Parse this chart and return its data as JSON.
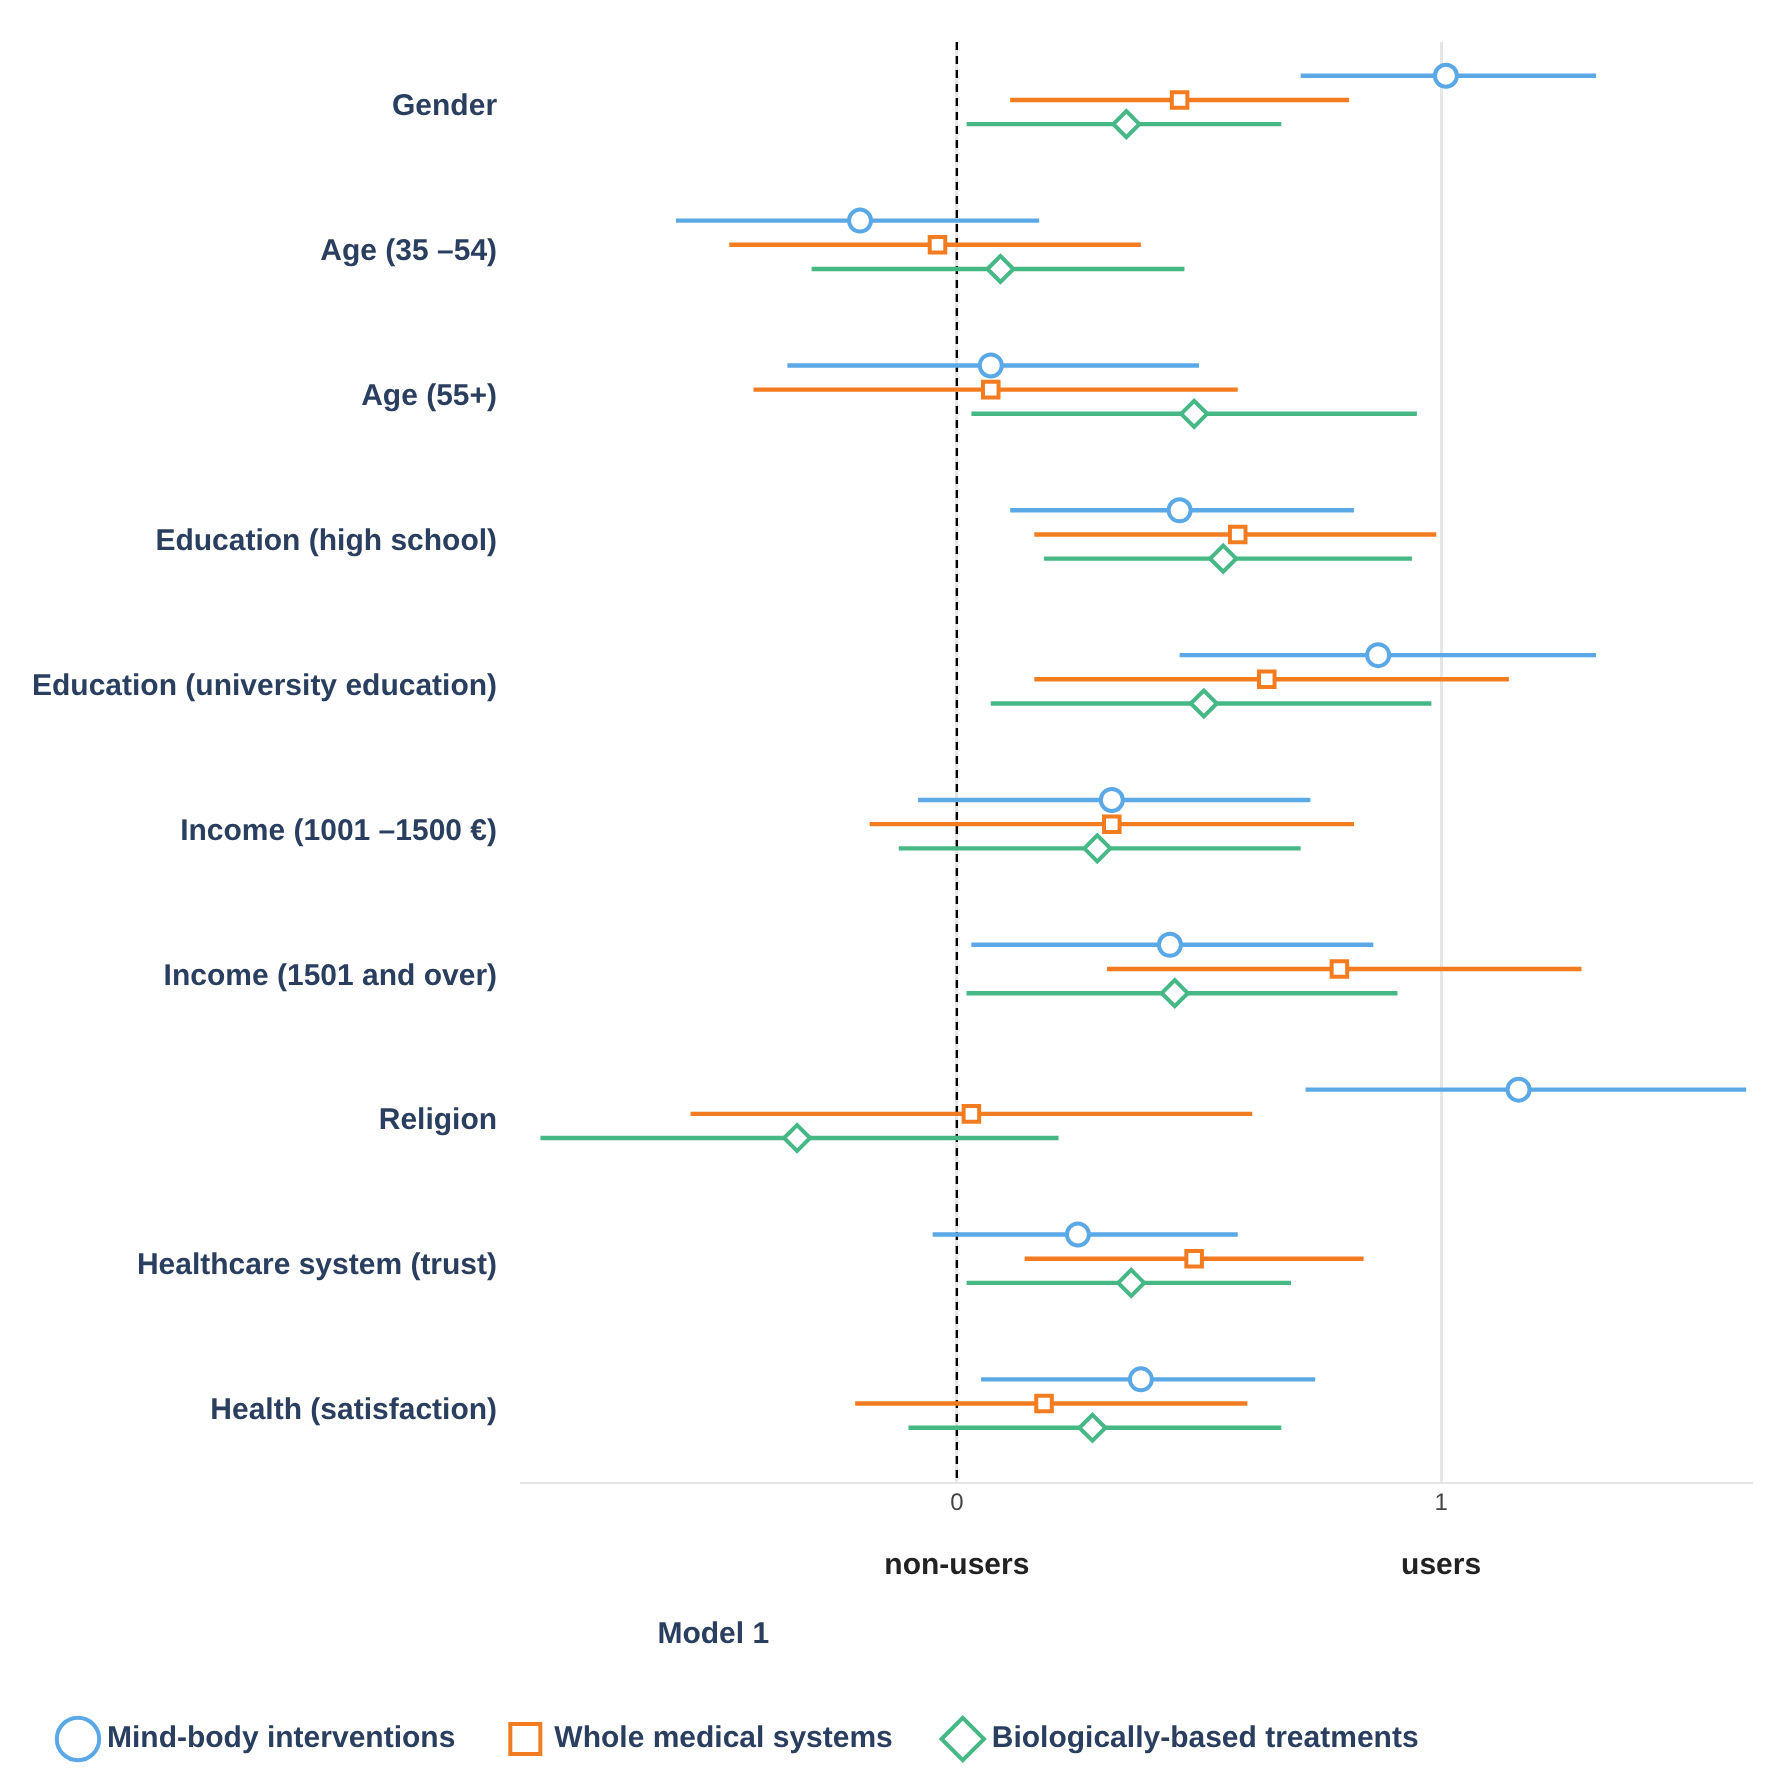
{
  "chart_data": {
    "type": "scatter",
    "orientation": "horizontal",
    "categories": [
      "Gender",
      "Age (35 –54)",
      "Age (55+)",
      "Education (high school)",
      "Education (university education)",
      "Income (1001 –1500 €)",
      "Income (1501 and over)",
      "Religion",
      "Healthcare system (trust)",
      "Health (satisfaction)"
    ],
    "series": [
      {
        "name": "Mind-body interventions",
        "color": "#5aa9e6",
        "marker": "circle",
        "values": [
          1.01,
          -0.2,
          0.07,
          0.46,
          0.87,
          0.32,
          0.44,
          1.16,
          0.25,
          0.38
        ],
        "errors": [
          [
            0.71,
            1.32
          ],
          [
            -0.58,
            0.17
          ],
          [
            -0.35,
            0.5
          ],
          [
            0.11,
            0.82
          ],
          [
            0.46,
            1.32
          ],
          [
            -0.08,
            0.73
          ],
          [
            0.03,
            0.86
          ],
          [
            0.72,
            1.63
          ],
          [
            -0.05,
            0.58
          ],
          [
            0.05,
            0.74
          ]
        ]
      },
      {
        "name": "Whole medical systems",
        "color": "#f47c20",
        "marker": "square",
        "values": [
          0.46,
          -0.04,
          0.07,
          0.58,
          0.64,
          0.32,
          0.79,
          0.03,
          0.49,
          0.18
        ],
        "errors": [
          [
            0.11,
            0.81
          ],
          [
            -0.47,
            0.38
          ],
          [
            -0.42,
            0.58
          ],
          [
            0.16,
            0.99
          ],
          [
            0.16,
            1.14
          ],
          [
            -0.18,
            0.82
          ],
          [
            0.31,
            1.29
          ],
          [
            -0.55,
            0.61
          ],
          [
            0.14,
            0.84
          ],
          [
            -0.21,
            0.6
          ]
        ]
      },
      {
        "name": "Biologically-based treatments",
        "color": "#45b886",
        "marker": "diamond",
        "values": [
          0.35,
          0.09,
          0.49,
          0.55,
          0.51,
          0.29,
          0.45,
          -0.33,
          0.36,
          0.28
        ],
        "errors": [
          [
            0.02,
            0.67
          ],
          [
            -0.3,
            0.47
          ],
          [
            0.03,
            0.95
          ],
          [
            0.18,
            0.94
          ],
          [
            0.07,
            0.98
          ],
          [
            -0.12,
            0.71
          ],
          [
            0.02,
            0.91
          ],
          [
            -0.86,
            0.21
          ],
          [
            0.02,
            0.69
          ],
          [
            -0.1,
            0.67
          ]
        ]
      }
    ],
    "xlim": [
      -0.9,
      1.64
    ],
    "xticks": [
      0,
      1
    ],
    "grid": "x",
    "ref_lines": [
      {
        "axis": "x",
        "value": 0,
        "color": "#000000",
        "line_style": "dashed"
      }
    ],
    "annotations": [
      "non-users",
      "users"
    ],
    "legend": "bottom left",
    "legend_title": "Model 1"
  }
}
